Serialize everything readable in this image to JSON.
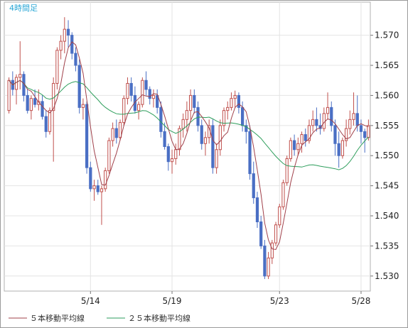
{
  "chart_data": {
    "type": "candlestick",
    "timeframe_label": "4時間足",
    "y_ticks": [
      "1.530",
      "1.535",
      "1.540",
      "1.545",
      "1.550",
      "1.555",
      "1.560",
      "1.565",
      "1.570"
    ],
    "ylim": [
      1.5275,
      1.5755
    ],
    "x_ticks": [
      {
        "label": "5/14",
        "bar": 22
      },
      {
        "label": "5/19",
        "bar": 44
      },
      {
        "label": "5/23",
        "bar": 73
      },
      {
        "label": "5/28",
        "bar": 95
      }
    ],
    "ma_colors": {
      "ma5": "#a0404a",
      "ma25": "#2e9e5c"
    },
    "candle_colors": {
      "up": "#c0504d",
      "down": "#4a6fc4"
    },
    "legend": [
      {
        "label": "５本移動平均線",
        "color": "#a0404a"
      },
      {
        "label": "２５本移動平均線",
        "color": "#2e9e5c"
      }
    ],
    "candles": [
      [
        1.5575,
        1.563,
        1.557,
        1.5625
      ],
      [
        1.5625,
        1.564,
        1.56,
        1.561
      ],
      [
        1.561,
        1.5635,
        1.5585,
        1.563
      ],
      [
        1.563,
        1.569,
        1.561,
        1.5635
      ],
      [
        1.5635,
        1.564,
        1.559,
        1.56
      ],
      [
        1.56,
        1.561,
        1.557,
        1.5575
      ],
      [
        1.5575,
        1.56,
        1.556,
        1.5595
      ],
      [
        1.5595,
        1.561,
        1.558,
        1.5585
      ],
      [
        1.5585,
        1.561,
        1.5575,
        1.559
      ],
      [
        1.559,
        1.56,
        1.556,
        1.5565
      ],
      [
        1.5565,
        1.5575,
        1.553,
        1.554
      ],
      [
        1.554,
        1.558,
        1.5535,
        1.5575
      ],
      [
        1.5575,
        1.563,
        1.549,
        1.562
      ],
      [
        1.562,
        1.568,
        1.561,
        1.5675
      ],
      [
        1.5675,
        1.57,
        1.566,
        1.569
      ],
      [
        1.569,
        1.573,
        1.567,
        1.571
      ],
      [
        1.571,
        1.5725,
        1.568,
        1.57
      ],
      [
        1.57,
        1.5705,
        1.566,
        1.567
      ],
      [
        1.567,
        1.568,
        1.564,
        1.565
      ],
      [
        1.565,
        1.566,
        1.557,
        1.558
      ],
      [
        1.558,
        1.5595,
        1.556,
        1.5585
      ],
      [
        1.5585,
        1.559,
        1.547,
        1.548
      ],
      [
        1.548,
        1.549,
        1.544,
        1.5445
      ],
      [
        1.5445,
        1.546,
        1.5425,
        1.545
      ],
      [
        1.545,
        1.546,
        1.5435,
        1.544
      ],
      [
        1.544,
        1.545,
        1.5385,
        1.5445
      ],
      [
        1.5445,
        1.548,
        1.544,
        1.5475
      ],
      [
        1.5475,
        1.553,
        1.547,
        1.5525
      ],
      [
        1.5525,
        1.5555,
        1.5515,
        1.5545
      ],
      [
        1.5545,
        1.556,
        1.552,
        1.553
      ],
      [
        1.553,
        1.556,
        1.5525,
        1.5555
      ],
      [
        1.5555,
        1.56,
        1.555,
        1.5595
      ],
      [
        1.5595,
        1.563,
        1.5585,
        1.562
      ],
      [
        1.562,
        1.563,
        1.559,
        1.56
      ],
      [
        1.56,
        1.5615,
        1.557,
        1.5575
      ],
      [
        1.5575,
        1.559,
        1.556,
        1.5585
      ],
      [
        1.5585,
        1.563,
        1.558,
        1.5625
      ],
      [
        1.5625,
        1.564,
        1.56,
        1.561
      ],
      [
        1.561,
        1.5615,
        1.5585,
        1.5595
      ],
      [
        1.5595,
        1.561,
        1.558,
        1.56
      ],
      [
        1.56,
        1.561,
        1.557,
        1.558
      ],
      [
        1.558,
        1.559,
        1.553,
        1.554
      ],
      [
        1.554,
        1.5555,
        1.551,
        1.5515
      ],
      [
        1.5515,
        1.552,
        1.5475,
        1.549
      ],
      [
        1.549,
        1.551,
        1.547,
        1.5495
      ],
      [
        1.5495,
        1.552,
        1.5485,
        1.551
      ],
      [
        1.551,
        1.555,
        1.55,
        1.5545
      ],
      [
        1.5545,
        1.557,
        1.553,
        1.556
      ],
      [
        1.556,
        1.559,
        1.554,
        1.5575
      ],
      [
        1.5575,
        1.561,
        1.556,
        1.56
      ],
      [
        1.56,
        1.561,
        1.557,
        1.558
      ],
      [
        1.558,
        1.559,
        1.554,
        1.555
      ],
      [
        1.555,
        1.556,
        1.551,
        1.552
      ],
      [
        1.552,
        1.554,
        1.55,
        1.553
      ],
      [
        1.553,
        1.556,
        1.552,
        1.555
      ],
      [
        1.555,
        1.556,
        1.547,
        1.548
      ],
      [
        1.548,
        1.552,
        1.547,
        1.551
      ],
      [
        1.551,
        1.556,
        1.55,
        1.555
      ],
      [
        1.555,
        1.558,
        1.554,
        1.5575
      ],
      [
        1.5575,
        1.559,
        1.556,
        1.558
      ],
      [
        1.558,
        1.5605,
        1.5575,
        1.5595
      ],
      [
        1.5595,
        1.5608,
        1.558,
        1.56
      ],
      [
        1.56,
        1.5605,
        1.557,
        1.558
      ],
      [
        1.558,
        1.559,
        1.554,
        1.555
      ],
      [
        1.555,
        1.556,
        1.552,
        1.554
      ],
      [
        1.554,
        1.555,
        1.546,
        1.547
      ],
      [
        1.547,
        1.549,
        1.542,
        1.543
      ],
      [
        1.543,
        1.544,
        1.538,
        1.539
      ],
      [
        1.539,
        1.54,
        1.5345,
        1.535
      ],
      [
        1.535,
        1.536,
        1.5295,
        1.53
      ],
      [
        1.53,
        1.534,
        1.5295,
        1.533
      ],
      [
        1.533,
        1.536,
        1.532,
        1.5355
      ],
      [
        1.5355,
        1.539,
        1.535,
        1.5385
      ],
      [
        1.5385,
        1.542,
        1.538,
        1.5415
      ],
      [
        1.5415,
        1.546,
        1.541,
        1.5455
      ],
      [
        1.5455,
        1.55,
        1.545,
        1.5495
      ],
      [
        1.5495,
        1.553,
        1.549,
        1.5525
      ],
      [
        1.5525,
        1.5535,
        1.55,
        1.551
      ],
      [
        1.551,
        1.553,
        1.55,
        1.552
      ],
      [
        1.552,
        1.554,
        1.5505,
        1.5535
      ],
      [
        1.5535,
        1.5545,
        1.5515,
        1.5525
      ],
      [
        1.5525,
        1.556,
        1.552,
        1.555
      ],
      [
        1.555,
        1.5575,
        1.554,
        1.556
      ],
      [
        1.556,
        1.558,
        1.554,
        1.555
      ],
      [
        1.555,
        1.557,
        1.5535,
        1.5545
      ],
      [
        1.5545,
        1.558,
        1.554,
        1.557
      ],
      [
        1.557,
        1.5605,
        1.556,
        1.558
      ],
      [
        1.558,
        1.559,
        1.554,
        1.555
      ],
      [
        1.555,
        1.556,
        1.55,
        1.552
      ],
      [
        1.552,
        1.554,
        1.548,
        1.55
      ],
      [
        1.55,
        1.553,
        1.5495,
        1.5525
      ],
      [
        1.5525,
        1.556,
        1.5515,
        1.5545
      ],
      [
        1.5545,
        1.5575,
        1.5535,
        1.556
      ],
      [
        1.556,
        1.5605,
        1.555,
        1.557
      ],
      [
        1.557,
        1.56,
        1.554,
        1.555
      ],
      [
        1.555,
        1.556,
        1.552,
        1.554
      ],
      [
        1.554,
        1.5545,
        1.5505,
        1.553
      ],
      [
        1.553,
        1.556,
        1.5525,
        1.555
      ]
    ]
  }
}
